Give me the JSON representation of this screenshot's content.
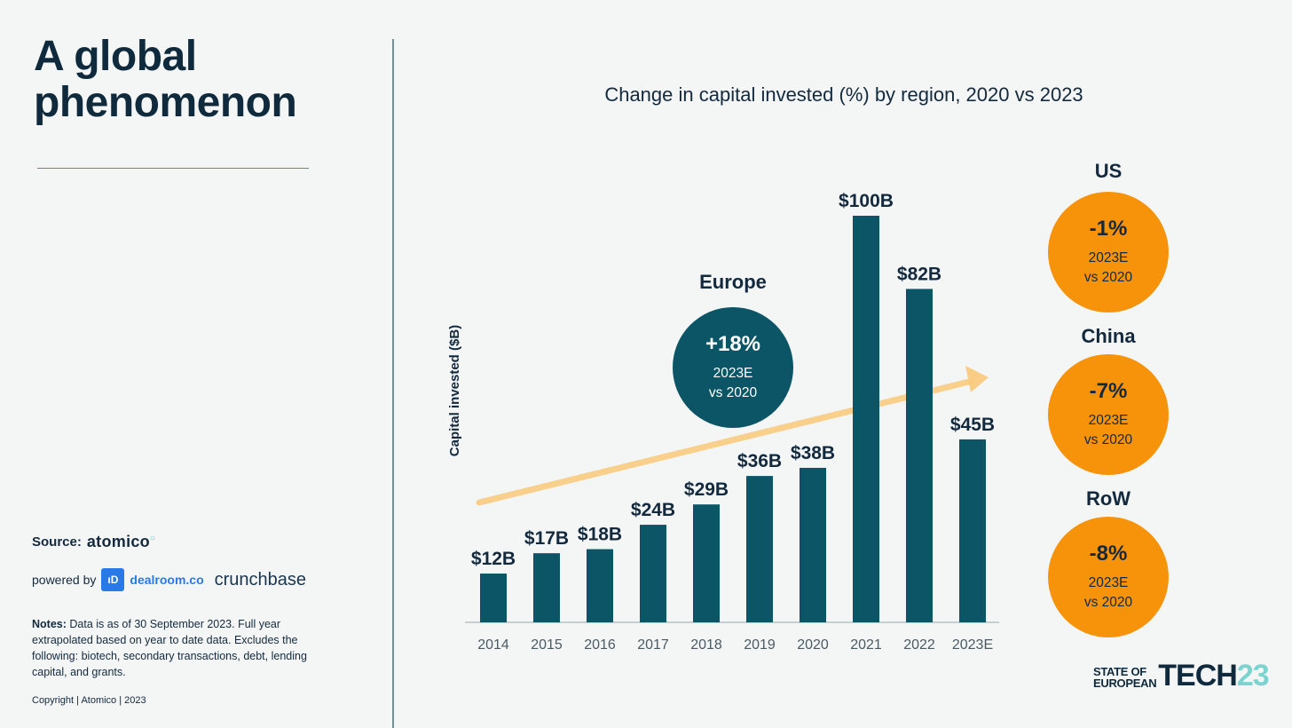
{
  "page": {
    "title_line1": "A global",
    "title_line2": "phenomenon",
    "source_label": "Source:",
    "source_logo": "atomico",
    "powered_by_label": "powered by",
    "dealroom_badge": "ıD",
    "dealroom_logo": "dealroom.co",
    "crunchbase_logo": "crunchbase",
    "notes_label": "Notes:",
    "notes_text": " Data is as of 30 September 2023. Full year extrapolated based on year to date data. Excludes the following: biotech, secondary transactions, debt, lending capital, and grants.",
    "copyright": "Copyright | Atomico | 2023",
    "brand": {
      "line1": "STATE OF",
      "line2": "EUROPEAN",
      "tech": "TECH",
      "num": "23"
    }
  },
  "chart_data": {
    "type": "bar",
    "title": "Change in capital invested (%) by region, 2020 vs 2023",
    "ylabel": "Capital invested ($B)",
    "xlabel": "",
    "categories": [
      "2014",
      "2015",
      "2016",
      "2017",
      "2018",
      "2019",
      "2020",
      "2021",
      "2022",
      "2023E"
    ],
    "values": [
      12,
      17,
      18,
      24,
      29,
      36,
      38,
      100,
      82,
      45
    ],
    "value_labels": [
      "$12B",
      "$17B",
      "$18B",
      "$24B",
      "$29B",
      "$36B",
      "$38B",
      "$100B",
      "$82B",
      "$45B"
    ],
    "ylim": [
      0,
      100
    ],
    "grid": false,
    "colors": {
      "bar": "#0b5566",
      "trend_arrow": "#fbc97a",
      "europe_bubble": "#0b5566",
      "other_bubble": "#f7930a"
    },
    "regions": [
      {
        "name": "Europe",
        "change": "+18%",
        "line1": "2023E",
        "line2": "vs 2020"
      },
      {
        "name": "US",
        "change": "-1%",
        "line1": "2023E",
        "line2": "vs 2020"
      },
      {
        "name": "China",
        "change": "-7%",
        "line1": "2023E",
        "line2": "vs 2020"
      },
      {
        "name": "RoW",
        "change": "-8%",
        "line1": "2023E",
        "line2": "vs 2020"
      }
    ]
  }
}
